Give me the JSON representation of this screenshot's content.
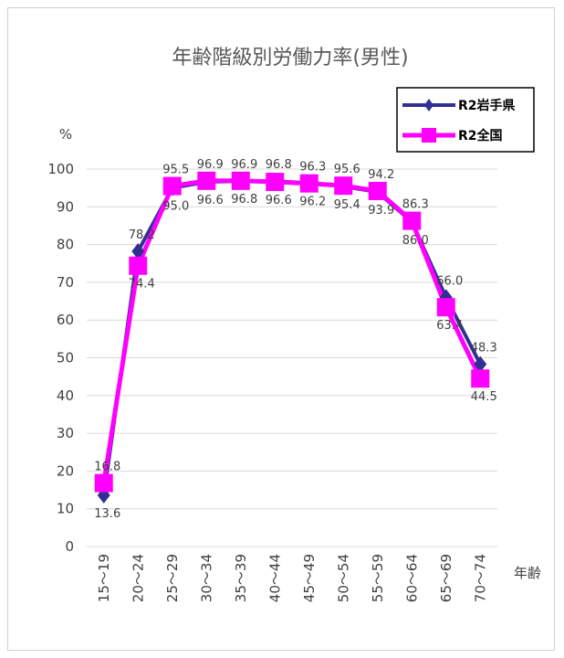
{
  "chart_data": {
    "type": "line",
    "title": "年齢階級別労働力率(男性)",
    "ylabel": "%",
    "xlabel": "年齢",
    "ylim": [
      0,
      100
    ],
    "yticks": [
      0,
      10,
      20,
      30,
      40,
      50,
      60,
      70,
      80,
      90,
      100
    ],
    "grid": true,
    "legend_position": "top-right",
    "categories": [
      "15～19",
      "20～24",
      "25～29",
      "30～34",
      "35～39",
      "40～44",
      "45～49",
      "50～54",
      "55～59",
      "60～64",
      "65～69",
      "70～74"
    ],
    "series": [
      {
        "name": "R2岩手県",
        "marker": "diamond",
        "color": "#2e3192",
        "values": [
          13.6,
          78.2,
          95.0,
          96.6,
          96.8,
          96.8,
          96.3,
          95.4,
          93.9,
          86.0,
          66.0,
          48.3
        ]
      },
      {
        "name": "R2全国",
        "marker": "square",
        "color": "#ff00ff",
        "values": [
          16.8,
          74.4,
          95.5,
          96.9,
          96.9,
          96.6,
          96.2,
          95.6,
          94.2,
          86.3,
          63.4,
          44.5
        ]
      }
    ]
  }
}
